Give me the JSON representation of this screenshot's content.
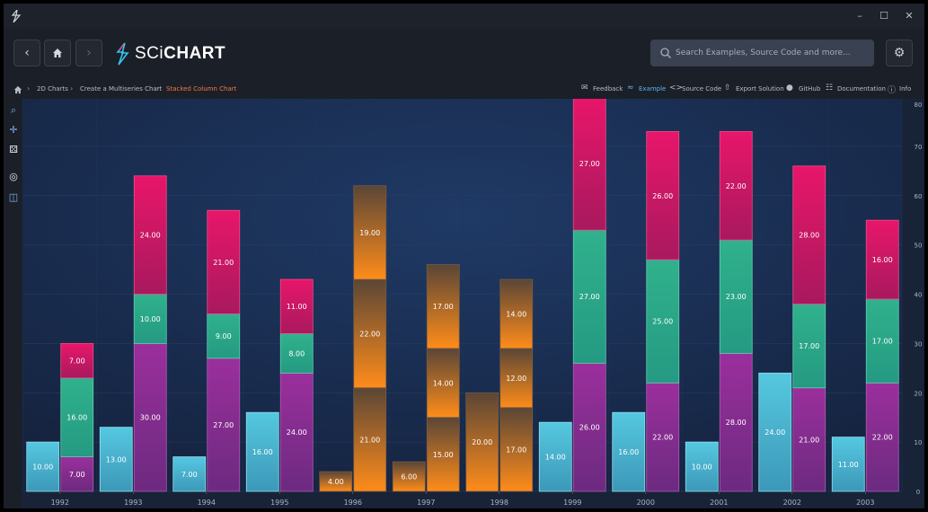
{
  "app": {
    "brand_light": "SCi",
    "brand_bold": "CHART",
    "window_controls": {
      "minimize": "–",
      "maximize": "☐",
      "close": "✕"
    }
  },
  "nav": {
    "back_icon": "chevron-left-icon",
    "home_icon": "home-icon",
    "forward_icon": "chevron-right-icon",
    "search_placeholder": "Search Examples, Source Code and more...",
    "settings_icon": "gear-icon"
  },
  "breadcrumb": {
    "items": [
      "2D Charts",
      "Create a Multiseries Chart",
      "Stacked Column Chart"
    ]
  },
  "toplinks": {
    "feedback": "Feedback",
    "example": "Example",
    "source_code": "Source Code",
    "export_solution": "Export Solution",
    "github": "GitHub",
    "documentation": "Documentation",
    "info": "Info"
  },
  "colors": {
    "cyan": "#52c4dd",
    "purple": "#8e2e93",
    "teal": "#2ea888",
    "pink": "#e01666",
    "orange_top": "#ff8c1a",
    "brown": "#5a4636",
    "plot_bg": "#1d3258"
  },
  "chart_data": {
    "type": "bar",
    "stacked": true,
    "categories": [
      "1992",
      "1993",
      "1994",
      "1995",
      "1996",
      "1997",
      "1998",
      "1999",
      "2000",
      "2001",
      "2002",
      "2003"
    ],
    "ylim": [
      0,
      80
    ],
    "yticks": [
      0,
      10,
      20,
      30,
      40,
      50,
      60,
      70,
      80
    ],
    "groups": [
      {
        "name": "group-a",
        "series": [
          {
            "name": "cyan",
            "values": [
              10,
              13,
              7,
              16,
              0,
              0,
              0,
              14,
              16,
              10,
              24,
              11
            ],
            "labels": [
              true,
              true,
              true,
              true,
              false,
              false,
              false,
              true,
              true,
              true,
              true,
              true
            ]
          }
        ]
      },
      {
        "name": "group-b",
        "series": [
          {
            "name": "purple",
            "values": [
              7,
              30,
              27,
              24,
              0,
              0,
              0,
              26,
              22,
              28,
              21,
              22
            ]
          },
          {
            "name": "teal",
            "values": [
              16,
              10,
              9,
              8,
              0,
              0,
              0,
              27,
              25,
              23,
              17,
              17
            ]
          },
          {
            "name": "pink",
            "values": [
              7,
              24,
              21,
              11,
              0,
              0,
              0,
              27,
              26,
              22,
              28,
              16
            ]
          }
        ]
      },
      {
        "name": "group-orange-left",
        "series": [
          {
            "name": "orange-left",
            "values": [
              0,
              0,
              0,
              0,
              4,
              6,
              20,
              0,
              0,
              0,
              0,
              0
            ]
          }
        ]
      },
      {
        "name": "group-orange-right",
        "series": [
          {
            "name": "orange-bottom",
            "values": [
              0,
              0,
              0,
              0,
              21,
              15,
              17,
              0,
              0,
              0,
              0,
              0
            ]
          },
          {
            "name": "orange-middle",
            "values": [
              0,
              0,
              0,
              0,
              22,
              14,
              12,
              0,
              0,
              0,
              0,
              0
            ]
          },
          {
            "name": "orange-top",
            "values": [
              0,
              0,
              0,
              0,
              19,
              17,
              14,
              0,
              0,
              0,
              0,
              0
            ]
          }
        ]
      }
    ]
  }
}
